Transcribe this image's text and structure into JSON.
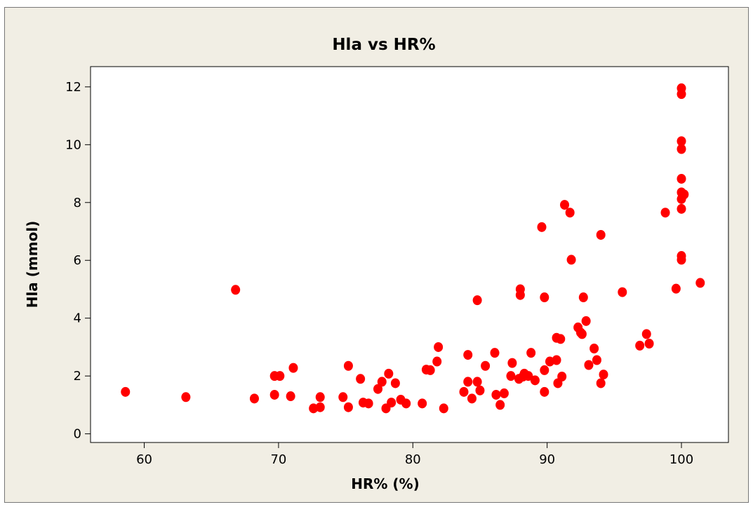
{
  "chart_data": {
    "type": "scatter",
    "title": "Hla vs HR%",
    "xlabel": "HR% (%)",
    "ylabel": "Hla (mmol)",
    "xlim": [
      56,
      103.5
    ],
    "ylim": [
      -0.3,
      12.7
    ],
    "xticks": [
      60,
      70,
      80,
      90,
      100
    ],
    "yticks": [
      0,
      2,
      4,
      6,
      8,
      10,
      12
    ],
    "grid": false,
    "marker_color": "#ff0000",
    "points": [
      [
        58.6,
        1.45
      ],
      [
        63.1,
        1.27
      ],
      [
        66.8,
        4.98
      ],
      [
        68.2,
        1.22
      ],
      [
        69.7,
        2.0
      ],
      [
        69.7,
        1.35
      ],
      [
        70.1,
        2.0
      ],
      [
        70.9,
        1.3
      ],
      [
        71.1,
        2.28
      ],
      [
        72.6,
        0.88
      ],
      [
        73.1,
        1.27
      ],
      [
        73.1,
        0.92
      ],
      [
        74.8,
        1.27
      ],
      [
        75.2,
        2.35
      ],
      [
        75.2,
        0.92
      ],
      [
        76.1,
        1.9
      ],
      [
        76.3,
        1.08
      ],
      [
        76.7,
        1.05
      ],
      [
        77.4,
        1.55
      ],
      [
        77.7,
        1.8
      ],
      [
        78.0,
        0.88
      ],
      [
        78.2,
        2.08
      ],
      [
        78.4,
        1.08
      ],
      [
        78.7,
        1.75
      ],
      [
        79.1,
        1.18
      ],
      [
        79.5,
        1.05
      ],
      [
        80.7,
        1.05
      ],
      [
        81.0,
        2.22
      ],
      [
        81.3,
        2.2
      ],
      [
        81.8,
        2.5
      ],
      [
        81.9,
        3.0
      ],
      [
        82.3,
        0.88
      ],
      [
        83.8,
        1.45
      ],
      [
        84.1,
        1.8
      ],
      [
        84.1,
        2.73
      ],
      [
        84.4,
        1.22
      ],
      [
        84.8,
        4.62
      ],
      [
        84.8,
        1.8
      ],
      [
        85.0,
        1.5
      ],
      [
        85.4,
        2.35
      ],
      [
        86.1,
        2.8
      ],
      [
        86.2,
        1.35
      ],
      [
        86.5,
        1.0
      ],
      [
        86.8,
        1.4
      ],
      [
        87.3,
        2.0
      ],
      [
        87.4,
        2.45
      ],
      [
        87.9,
        1.9
      ],
      [
        88.0,
        5.0
      ],
      [
        88.0,
        4.8
      ],
      [
        88.2,
        1.98
      ],
      [
        88.3,
        2.08
      ],
      [
        88.6,
        2.0
      ],
      [
        88.8,
        2.8
      ],
      [
        89.1,
        1.85
      ],
      [
        89.6,
        7.15
      ],
      [
        89.8,
        2.2
      ],
      [
        89.8,
        4.72
      ],
      [
        89.8,
        1.45
      ],
      [
        90.2,
        2.5
      ],
      [
        90.7,
        2.55
      ],
      [
        90.7,
        3.32
      ],
      [
        90.8,
        1.75
      ],
      [
        91.0,
        3.28
      ],
      [
        91.1,
        1.98
      ],
      [
        91.3,
        7.92
      ],
      [
        91.7,
        7.65
      ],
      [
        91.8,
        6.02
      ],
      [
        92.3,
        3.68
      ],
      [
        92.5,
        3.5
      ],
      [
        92.6,
        3.45
      ],
      [
        92.7,
        4.72
      ],
      [
        92.9,
        3.9
      ],
      [
        93.1,
        2.38
      ],
      [
        93.5,
        2.95
      ],
      [
        93.7,
        2.55
      ],
      [
        94.0,
        6.88
      ],
      [
        94.0,
        1.75
      ],
      [
        94.2,
        2.05
      ],
      [
        95.6,
        4.9
      ],
      [
        96.9,
        3.05
      ],
      [
        97.4,
        3.45
      ],
      [
        97.6,
        3.12
      ],
      [
        98.8,
        7.65
      ],
      [
        99.6,
        5.02
      ],
      [
        100.0,
        11.95
      ],
      [
        100.0,
        11.75
      ],
      [
        100.0,
        10.12
      ],
      [
        100.0,
        9.85
      ],
      [
        100.0,
        8.82
      ],
      [
        100.0,
        8.35
      ],
      [
        100.0,
        8.12
      ],
      [
        100.0,
        7.78
      ],
      [
        100.0,
        6.15
      ],
      [
        100.0,
        6.02
      ],
      [
        100.2,
        8.28
      ],
      [
        101.4,
        5.22
      ]
    ]
  }
}
